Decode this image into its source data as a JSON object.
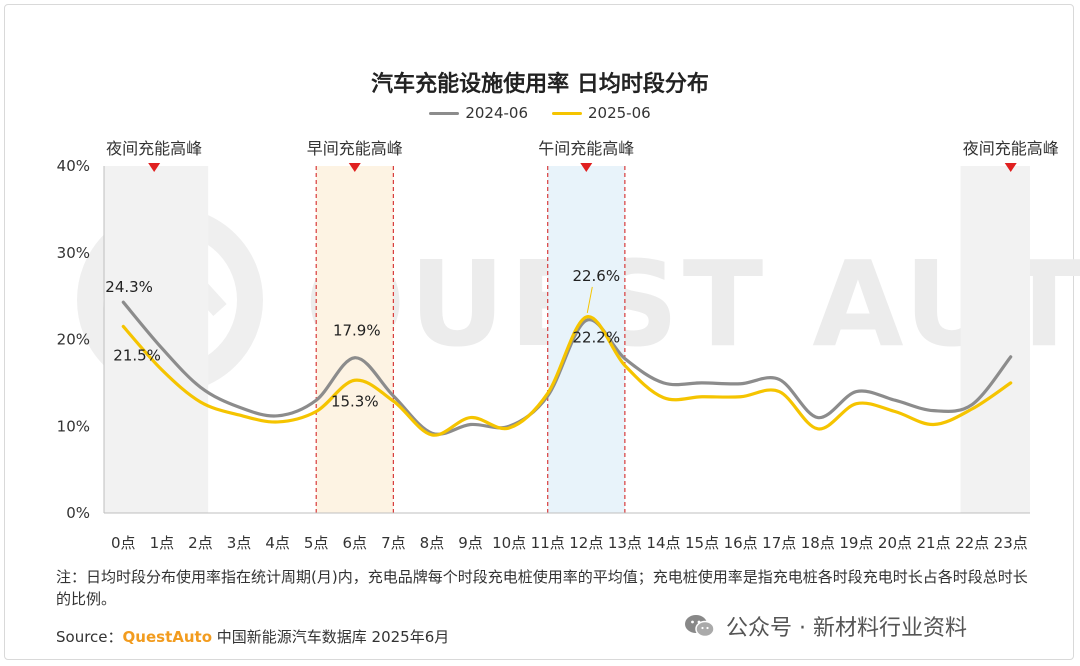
{
  "title": "汽车充能设施使用率 日均时段分布",
  "legend": [
    {
      "name": "2024-06",
      "color": "#8c8c8c"
    },
    {
      "name": "2025-06",
      "color": "#f5c400"
    }
  ],
  "peaks": [
    {
      "label": "夜间充能高峰"
    },
    {
      "label": "早间充能高峰"
    },
    {
      "label": "午间充能高峰"
    },
    {
      "label": "夜间充能高峰"
    }
  ],
  "watermark": "QUEST AUTO",
  "note": "注：日均时段分布使用率指在统计周期(月)内，充电品牌每个时段充电桩使用率的平均值；充电桩使用率是指充电桩各时段充电时长占各时段总时长的比例。",
  "source": {
    "prefix": "Source：",
    "brand": "QuestAuto",
    "text": "中国新能源汽车数据库 2025年6月"
  },
  "wechat": "公众号 · 新材料行业资料",
  "chart_data": {
    "type": "line",
    "title": "汽车充能设施使用率 日均时段分布",
    "categories": [
      "0点",
      "1点",
      "2点",
      "3点",
      "4点",
      "5点",
      "6点",
      "7点",
      "8点",
      "9点",
      "10点",
      "11点",
      "12点",
      "13点",
      "14点",
      "15点",
      "16点",
      "17点",
      "18点",
      "19点",
      "20点",
      "21点",
      "22点",
      "23点"
    ],
    "yticks": [
      "0%",
      "10%",
      "20%",
      "30%",
      "40%"
    ],
    "ylim": [
      0,
      40
    ],
    "series": [
      {
        "name": "2024-06",
        "color": "#8c8c8c",
        "values": [
          24.3,
          19.0,
          14.5,
          12.2,
          11.2,
          13.0,
          17.9,
          13.5,
          9.2,
          10.2,
          10.0,
          13.5,
          22.2,
          17.8,
          15.0,
          15.0,
          14.9,
          15.4,
          11.0,
          14.0,
          13.0,
          11.8,
          12.5,
          18.0
        ]
      },
      {
        "name": "2025-06",
        "color": "#f5c400",
        "values": [
          21.5,
          16.5,
          12.8,
          11.3,
          10.5,
          11.7,
          15.3,
          12.9,
          9.0,
          11.0,
          9.8,
          13.8,
          22.6,
          17.0,
          13.3,
          13.4,
          13.4,
          14.0,
          9.7,
          12.6,
          11.7,
          10.2,
          12.0,
          15.0
        ]
      }
    ],
    "data_labels": [
      {
        "series": 0,
        "index": 0,
        "text": "24.3%"
      },
      {
        "series": 1,
        "index": 0,
        "text": "21.5%"
      },
      {
        "series": 0,
        "index": 6,
        "text": "17.9%"
      },
      {
        "series": 1,
        "index": 6,
        "text": "15.3%"
      },
      {
        "series": 1,
        "index": 12,
        "text": "22.6%"
      },
      {
        "series": 0,
        "index": 12,
        "text": "22.2%"
      }
    ],
    "grid": false
  }
}
